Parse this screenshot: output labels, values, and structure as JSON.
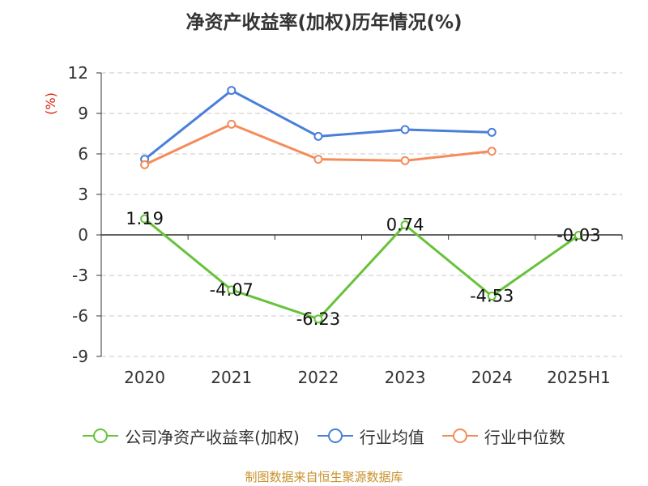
{
  "title": "净资产收益率(加权)历年情况(%)",
  "source": "制图数据来自恒生聚源数据库",
  "colors": {
    "company": "#67c23a",
    "industry_avg": "#4a7fd9",
    "industry_median": "#f48c5a",
    "unit": "#d81e06"
  },
  "chart_data": {
    "type": "line",
    "title": "净资产收益率(加权)历年情况(%)",
    "ylabel": "(%)",
    "categories": [
      "2020",
      "2021",
      "2022",
      "2023",
      "2024",
      "2025H1"
    ],
    "ylim": [
      -9,
      12
    ],
    "yticks": [
      12,
      9,
      6,
      3,
      0,
      -3,
      -6,
      -9
    ],
    "grid": true,
    "legend_position": "bottom",
    "series": [
      {
        "name": "公司净资产收益率(加权)",
        "color": "#67c23a",
        "values": [
          1.19,
          -4.07,
          -6.23,
          0.74,
          -4.53,
          -0.03
        ],
        "labels": [
          "1.19",
          "-4.07",
          "-6.23",
          "0.74",
          "-4.53",
          "-0.03"
        ]
      },
      {
        "name": "行业均值",
        "color": "#4a7fd9",
        "values": [
          5.6,
          10.7,
          7.3,
          7.8,
          7.6,
          null
        ]
      },
      {
        "name": "行业中位数",
        "color": "#f48c5a",
        "values": [
          5.2,
          8.2,
          5.6,
          5.5,
          6.2,
          null
        ]
      }
    ]
  }
}
